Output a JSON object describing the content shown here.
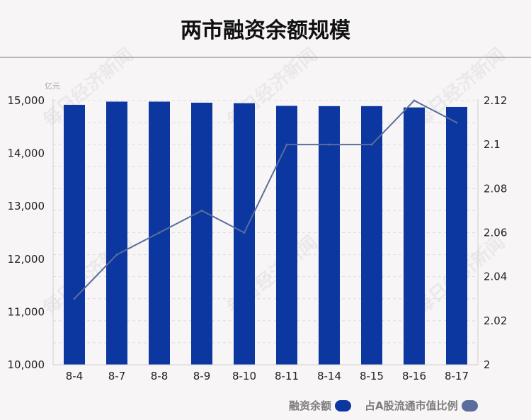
{
  "header": {
    "title": "两市融资余额规模"
  },
  "chart_data": {
    "type": "bar",
    "title": "两市融资余额规模",
    "categories": [
      "8-4",
      "8-7",
      "8-8",
      "8-9",
      "8-10",
      "8-11",
      "8-14",
      "8-15",
      "8-16",
      "8-17"
    ],
    "y_left_unit": "亿元",
    "y_left_range": [
      10000,
      15000
    ],
    "y_left_ticks": [
      "10,000",
      "11,000",
      "12,000",
      "13,000",
      "14,000",
      "15,000"
    ],
    "y_right_range": [
      2,
      2.12
    ],
    "y_right_ticks": [
      "2",
      "2.02",
      "2.04",
      "2.06",
      "2.08",
      "2.1",
      "2.12"
    ],
    "grid": "horizontal-dashed",
    "legend_position": "bottom-right",
    "series": [
      {
        "name": "融资余额",
        "type": "bar",
        "axis": "left",
        "color": "#0c36a0",
        "values": [
          14920,
          14980,
          14980,
          14960,
          14950,
          14900,
          14895,
          14895,
          14870,
          14880
        ]
      },
      {
        "name": "占A股流通市值比例",
        "type": "line",
        "axis": "right",
        "color": "#5a6e9b",
        "values": [
          2.03,
          2.05,
          2.06,
          2.07,
          2.06,
          2.1,
          2.1,
          2.1,
          2.12,
          2.11
        ]
      }
    ]
  },
  "watermark": "每日经济新闻"
}
